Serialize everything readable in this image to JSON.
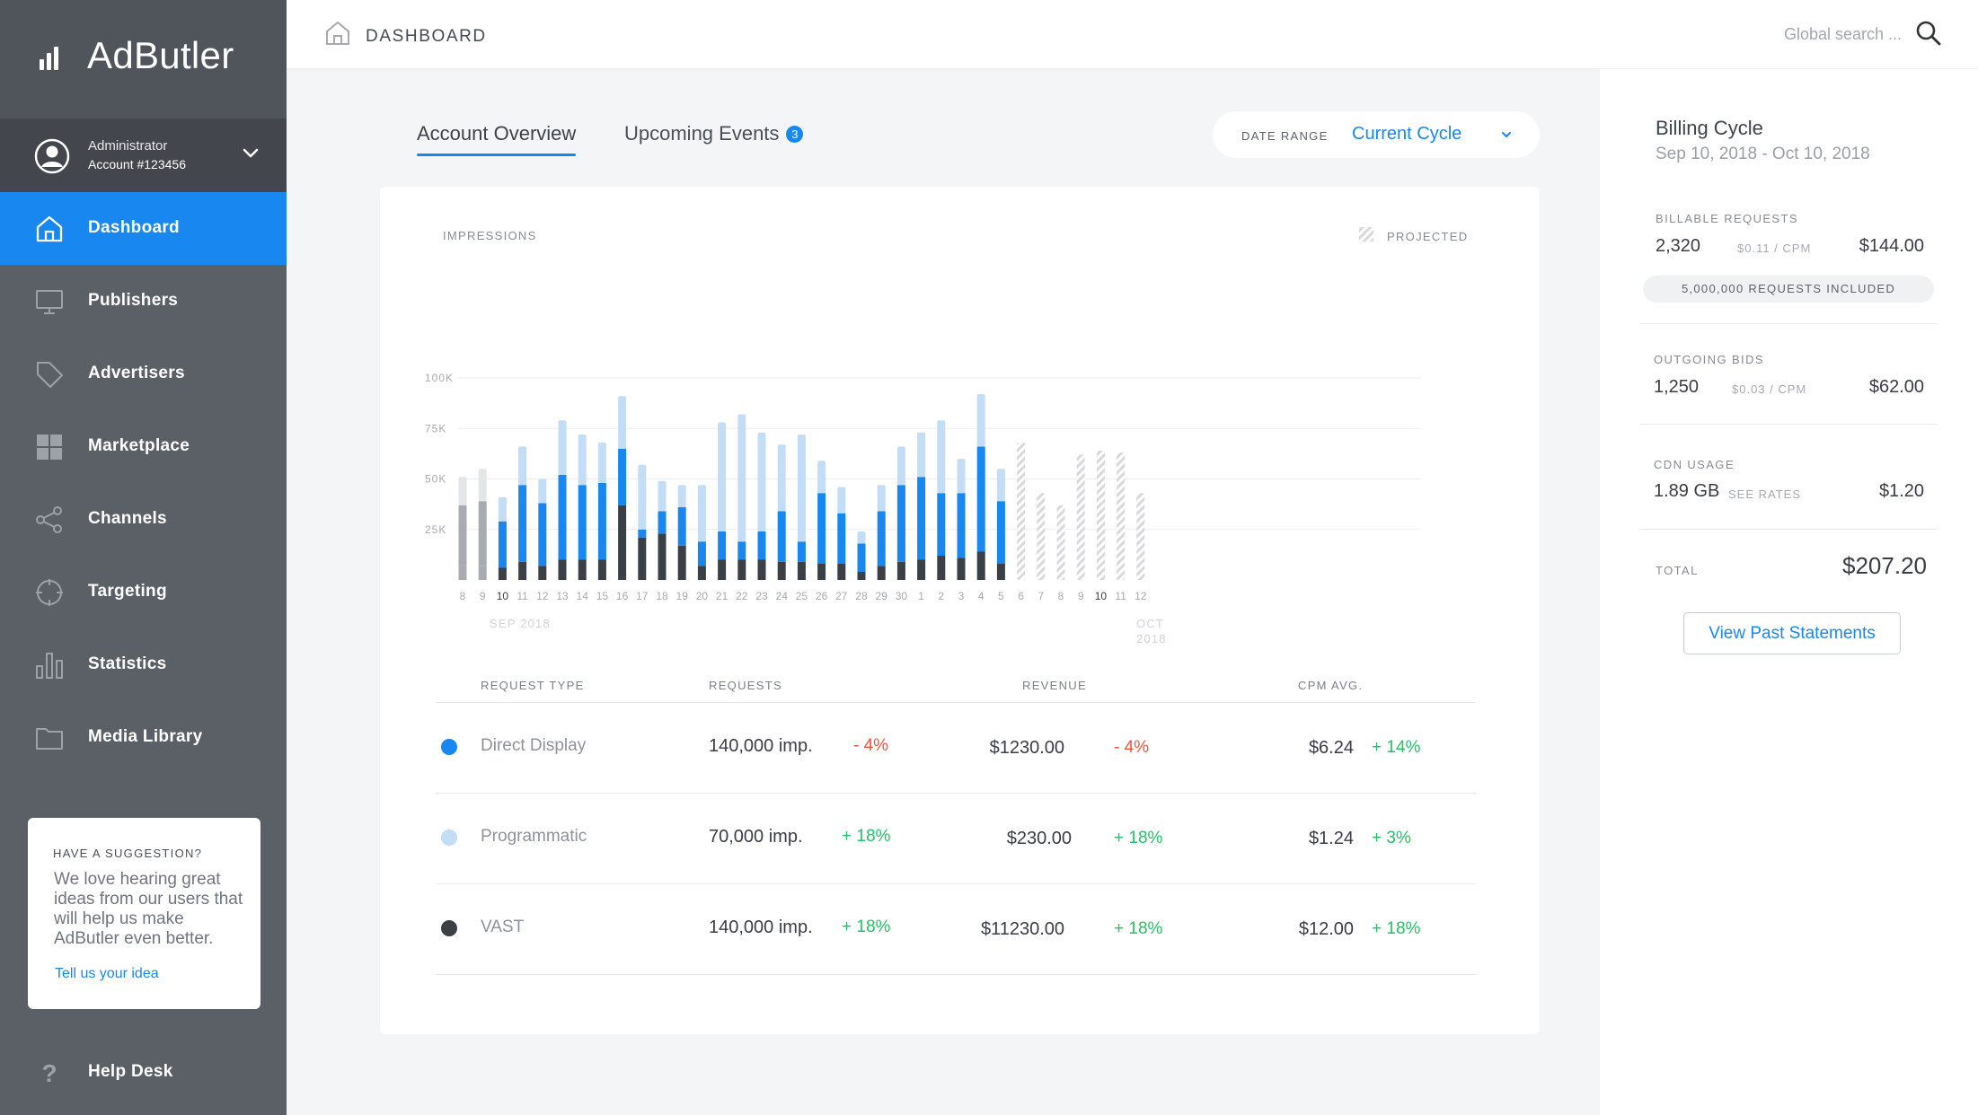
{
  "app": {
    "brand_name": "AdButler"
  },
  "account": {
    "name": "Administrator",
    "number": "Account #123456"
  },
  "sidebar": {
    "items": [
      {
        "label": "Dashboard",
        "icon": "home-icon",
        "active": true
      },
      {
        "label": "Publishers",
        "icon": "monitor-icon"
      },
      {
        "label": "Advertisers",
        "icon": "tag-icon"
      },
      {
        "label": "Marketplace",
        "icon": "grid-icon"
      },
      {
        "label": "Channels",
        "icon": "share-icon"
      },
      {
        "label": "Targeting",
        "icon": "crosshair-icon"
      },
      {
        "label": "Statistics",
        "icon": "bar-chart-icon"
      },
      {
        "label": "Media Library",
        "icon": "folder-icon"
      }
    ],
    "suggestion": {
      "title": "HAVE A SUGGESTION?",
      "body": "We love hearing great ideas from our users that will help us make AdButler even better.",
      "link": "Tell us your idea"
    },
    "help": "Help Desk"
  },
  "topbar": {
    "breadcrumb": "DASHBOARD",
    "search_placeholder": "Global search ..."
  },
  "tabs": [
    {
      "label": "Account Overview",
      "active": true
    },
    {
      "label": "Upcoming Events",
      "badge": "3"
    }
  ],
  "date_range": {
    "label": "DATE RANGE",
    "value": "Current Cycle"
  },
  "colors": {
    "accent": "#1887f0",
    "light_blue": "#c3ddf6",
    "dark": "#3b3f46",
    "gray": "#a8abb0",
    "positive": "#27c267",
    "negative": "#f0553b"
  },
  "chart_data": {
    "type": "bar",
    "title": "IMPRESSIONS",
    "legend": [
      "PROJECTED"
    ],
    "y_ticks": [
      "100K",
      "75K",
      "50K",
      "25K"
    ],
    "ylim": [
      0,
      100000
    ],
    "month_labels": [
      "SEP 2018",
      "OCT 2018"
    ],
    "categories": [
      "8",
      "9",
      "10",
      "11",
      "12",
      "13",
      "14",
      "15",
      "16",
      "17",
      "18",
      "19",
      "20",
      "21",
      "22",
      "23",
      "24",
      "25",
      "26",
      "27",
      "28",
      "29",
      "30",
      "1",
      "2",
      "3",
      "4",
      "5",
      "6",
      "7",
      "8",
      "9",
      "10",
      "11",
      "12"
    ],
    "highlighted_categories": [
      2,
      32
    ],
    "series": [
      {
        "name": "VAST",
        "values": [
          7000,
          7000,
          6000,
          9000,
          7000,
          10000,
          10000,
          10000,
          37000,
          21000,
          23000,
          17000,
          7000,
          10000,
          10000,
          10000,
          9000,
          9000,
          8000,
          8000,
          4000,
          7000,
          9000,
          10000,
          12000,
          11000,
          14000,
          8000,
          5000,
          0,
          0,
          0,
          0,
          0,
          0
        ]
      },
      {
        "name": "Direct Display",
        "values": [
          30000,
          32000,
          23000,
          38000,
          31000,
          42000,
          37000,
          38000,
          28000,
          4000,
          11000,
          19000,
          12000,
          14000,
          9000,
          14000,
          25000,
          10000,
          35000,
          25000,
          14000,
          27000,
          38000,
          41000,
          31000,
          32000,
          52000,
          31000,
          18000,
          0,
          0,
          0,
          0,
          0,
          0
        ]
      },
      {
        "name": "Programmatic",
        "values": [
          14000,
          16000,
          12000,
          19000,
          12000,
          27000,
          25000,
          20000,
          26000,
          32000,
          15000,
          11000,
          28000,
          54000,
          63000,
          49000,
          33000,
          53000,
          16000,
          13000,
          6000,
          13000,
          19000,
          22000,
          36000,
          17000,
          26000,
          16000,
          9000,
          0,
          0,
          0,
          0,
          0,
          0
        ]
      },
      {
        "name": "Projected",
        "values": [
          0,
          0,
          0,
          0,
          0,
          0,
          0,
          0,
          0,
          0,
          0,
          0,
          0,
          0,
          0,
          0,
          0,
          0,
          0,
          0,
          0,
          0,
          0,
          0,
          0,
          0,
          0,
          0,
          68000,
          43000,
          37000,
          62000,
          64000,
          63000,
          43000
        ]
      }
    ],
    "series_colors": [
      "#3b3f46",
      "#1887f0",
      "#c3ddf6",
      "#d7d9dd"
    ],
    "historic_gray_count": 2
  },
  "table": {
    "headers": [
      "REQUEST TYPE",
      "REQUESTS",
      "REVENUE",
      "CPM AVG."
    ],
    "rows": [
      {
        "name": "Direct Display",
        "color": "#1887f0",
        "requests": "140,000 imp.",
        "requests_change": "- 4%",
        "req_trend": "neg",
        "revenue": "$1230.00",
        "revenue_change": "- 4%",
        "rev_trend": "neg",
        "cpm": "$6.24",
        "cpm_change": "+ 14%",
        "cpm_trend": "pos"
      },
      {
        "name": "Programmatic",
        "color": "#c3ddf6",
        "requests": "70,000 imp.",
        "requests_change": "+ 18%",
        "req_trend": "pos",
        "revenue": "$230.00",
        "revenue_change": "+ 18%",
        "rev_trend": "pos",
        "cpm": "$1.24",
        "cpm_change": "+ 3%",
        "cpm_trend": "pos"
      },
      {
        "name": "VAST",
        "color": "#3b3f46",
        "requests": "140,000 imp.",
        "requests_change": "+ 18%",
        "req_trend": "pos",
        "revenue": "$11230.00",
        "revenue_change": "+ 18%",
        "rev_trend": "pos",
        "cpm": "$12.00",
        "cpm_change": "+ 18%",
        "cpm_trend": "pos"
      }
    ]
  },
  "billing": {
    "title": "Billing Cycle",
    "dates": "Sep 10, 2018 - Oct 10, 2018",
    "billable": {
      "label": "BILLABLE REQUESTS",
      "value": "2,320",
      "rate": "$0.11 / CPM",
      "amount": "$144.00",
      "included": "5,000,000 REQUESTS INCLUDED"
    },
    "bids": {
      "label": "OUTGOING BIDS",
      "value": "1,250",
      "rate": "$0.03 / CPM",
      "amount": "$62.00"
    },
    "cdn": {
      "label": "CDN USAGE",
      "value": "1.89 GB",
      "rate": "SEE RATES",
      "amount": "$1.20"
    },
    "total": {
      "label": "TOTAL",
      "amount": "$207.20"
    },
    "button": "View Past Statements"
  }
}
